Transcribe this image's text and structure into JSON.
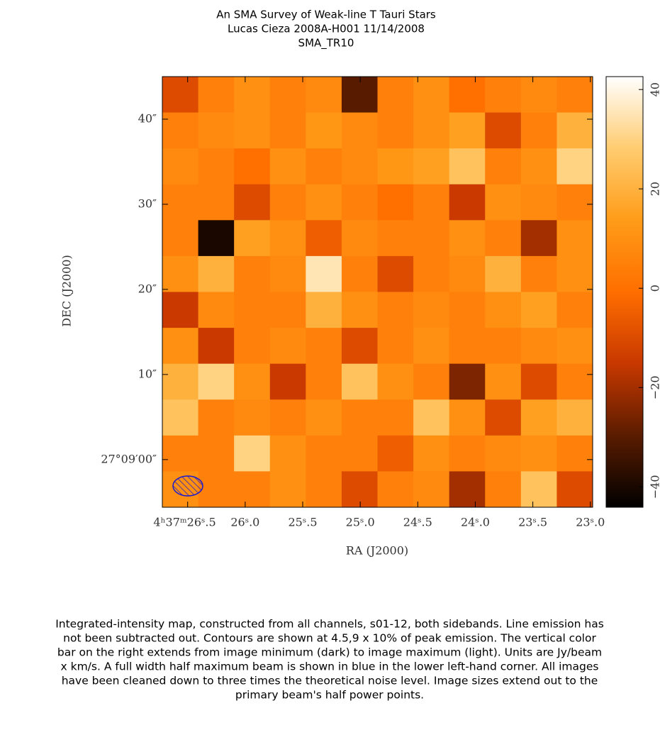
{
  "chart_data": {
    "type": "heatmap",
    "title": [
      "An SMA Survey of Weak-line T Tauri Stars",
      "Lucas Cieza   2008A-H001   11/14/2008",
      "SMA_TR10"
    ],
    "xlabel": "RA (J2000)",
    "ylabel": "DEC (J2000)",
    "xlim": [
      26.72,
      22.98
    ],
    "ylim": [
      -5.6,
      45
    ],
    "xticks": [
      {
        "value": 26.5,
        "label": "4ʰ37ᵐ26ˢ.5"
      },
      {
        "value": 26.0,
        "label": "26ˢ.0"
      },
      {
        "value": 25.5,
        "label": "25ˢ.5"
      },
      {
        "value": 25.0,
        "label": "25ˢ.0"
      },
      {
        "value": 24.5,
        "label": "24ˢ.5"
      },
      {
        "value": 24.0,
        "label": "24ˢ.0"
      },
      {
        "value": 23.5,
        "label": "23ˢ.5"
      },
      {
        "value": 23.0,
        "label": "23ˢ.0"
      }
    ],
    "yticks": [
      {
        "value": 0,
        "label": "27°09′00″"
      },
      {
        "value": 10,
        "label": "10″"
      },
      {
        "value": 20,
        "label": "20″"
      },
      {
        "value": 30,
        "label": "30″"
      },
      {
        "value": 40,
        "label": "40″"
      }
    ],
    "z": [
      [
        -10,
        5,
        10,
        5,
        8,
        -30,
        5,
        10,
        0,
        5,
        8,
        5
      ],
      [
        5,
        8,
        10,
        5,
        12,
        8,
        5,
        10,
        15,
        -10,
        5,
        20
      ],
      [
        8,
        5,
        0,
        10,
        5,
        8,
        12,
        15,
        25,
        5,
        10,
        30
      ],
      [
        5,
        5,
        -10,
        5,
        10,
        5,
        0,
        5,
        -15,
        10,
        8,
        5
      ],
      [
        5,
        -40,
        15,
        10,
        -5,
        8,
        5,
        5,
        10,
        5,
        -20,
        10
      ],
      [
        10,
        20,
        5,
        8,
        35,
        5,
        -10,
        5,
        8,
        20,
        5,
        10
      ],
      [
        -15,
        8,
        5,
        5,
        20,
        10,
        5,
        8,
        5,
        10,
        15,
        5
      ],
      [
        10,
        -15,
        5,
        8,
        5,
        -10,
        5,
        10,
        5,
        5,
        8,
        10
      ],
      [
        20,
        30,
        10,
        -15,
        5,
        25,
        10,
        5,
        -25,
        10,
        -10,
        5
      ],
      [
        25,
        5,
        8,
        5,
        10,
        5,
        5,
        25,
        10,
        -10,
        15,
        20
      ],
      [
        5,
        5,
        30,
        10,
        5,
        5,
        -5,
        10,
        5,
        8,
        10,
        5
      ],
      [
        10,
        5,
        5,
        10,
        5,
        -10,
        5,
        8,
        -20,
        5,
        25,
        -10
      ]
    ],
    "clim": [
      -44.1,
      42.6
    ],
    "cticks": [
      {
        "value": -40,
        "label": "−40"
      },
      {
        "value": -20,
        "label": "−20"
      },
      0,
      20,
      40
    ],
    "colorscale": [
      "#000000",
      "#5a1c00",
      "#c83800",
      "#ff6e00",
      "#ff9c18",
      "#ffcc70",
      "#ffffff"
    ],
    "caption": [
      "Integrated-intensity map, constructed from all channels, s01-12, both sidebands.  Line emission has",
      "not been subtracted out.  Contours are shown at 4.5,9 x 10% of peak emission.  The vertical color",
      "bar on the right extends from image minimum (dark) to image maximum (light).  Units are Jy/beam",
      "x km/s.  A full width half maximum beam is shown in blue in the lower left-hand corner.  All images",
      "have been cleaned down to three times the theoretical noise level.  Image sizes extend out to the",
      "primary beam's half power points."
    ]
  }
}
